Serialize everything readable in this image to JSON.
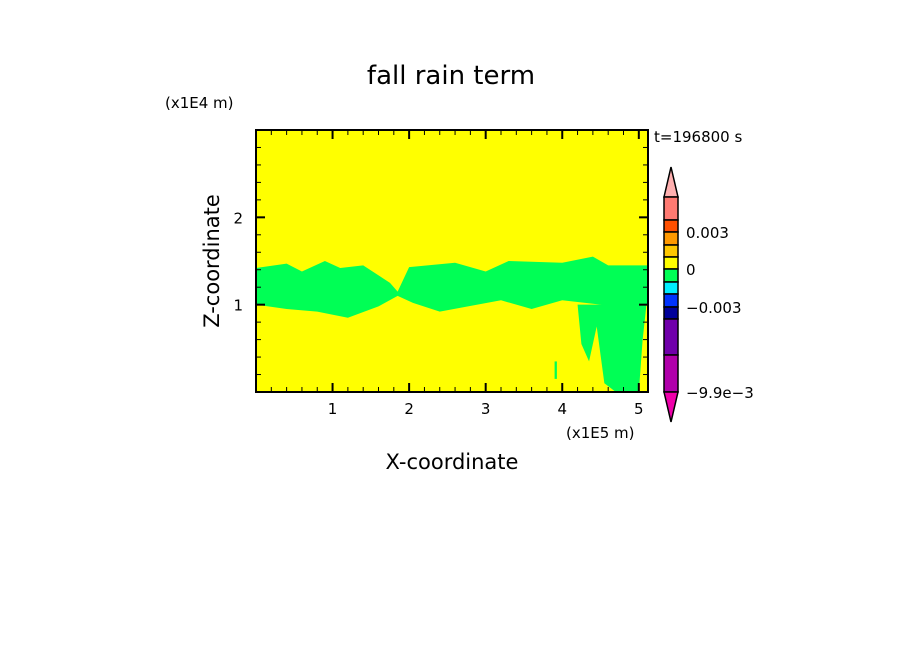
{
  "chart_data": {
    "type": "heatmap",
    "title": "fall rain term",
    "xlabel": "X-coordinate",
    "ylabel": "Z-coordinate",
    "x_unit": "(x1E5 m)",
    "y_unit": "(x1E4 m)",
    "time_label": "t=196800 s",
    "xlim": [
      0,
      5.12
    ],
    "ylim": [
      0,
      3
    ],
    "xticks": [
      1,
      2,
      3,
      4,
      5
    ],
    "yticks": [
      1,
      2
    ],
    "background_value_color": "#ffff00",
    "regions": [
      {
        "color": "#00ff55",
        "value_range": [
          -0.001,
          0
        ],
        "polygon": [
          [
            0,
            1.42
          ],
          [
            0.4,
            1.47
          ],
          [
            0.6,
            1.38
          ],
          [
            0.9,
            1.5
          ],
          [
            1.1,
            1.42
          ],
          [
            1.4,
            1.45
          ],
          [
            1.75,
            1.25
          ],
          [
            1.85,
            1.15
          ],
          [
            2.0,
            1.43
          ],
          [
            2.6,
            1.48
          ],
          [
            3.0,
            1.38
          ],
          [
            3.3,
            1.5
          ],
          [
            4.0,
            1.48
          ],
          [
            4.4,
            1.55
          ],
          [
            4.6,
            1.45
          ],
          [
            5.12,
            1.45
          ],
          [
            5.12,
            1.0
          ],
          [
            4.8,
            0.92
          ],
          [
            4.5,
            1.0
          ],
          [
            4.0,
            1.05
          ],
          [
            3.6,
            0.95
          ],
          [
            3.2,
            1.05
          ],
          [
            2.4,
            0.92
          ],
          [
            2.05,
            1.02
          ],
          [
            1.85,
            1.1
          ],
          [
            1.6,
            0.98
          ],
          [
            1.2,
            0.85
          ],
          [
            0.8,
            0.92
          ],
          [
            0.4,
            0.95
          ],
          [
            0,
            1.0
          ]
        ]
      },
      {
        "color": "#00ff55",
        "value_range": [
          -0.001,
          0
        ],
        "polygon": [
          [
            4.2,
            1.0
          ],
          [
            4.25,
            0.55
          ],
          [
            4.35,
            0.35
          ],
          [
            4.45,
            0.75
          ],
          [
            4.55,
            0.1
          ],
          [
            4.7,
            0.0
          ],
          [
            5.0,
            0.0
          ],
          [
            5.05,
            0.6
          ],
          [
            5.1,
            1.0
          ]
        ]
      },
      {
        "color": "#00ff55",
        "value_range": [
          -0.001,
          0
        ],
        "polygon": [
          [
            3.9,
            0.35
          ],
          [
            3.93,
            0.35
          ],
          [
            3.93,
            0.15
          ],
          [
            3.9,
            0.15
          ]
        ]
      }
    ],
    "colorbar": {
      "levels": [
        {
          "color": "#ffb0b0",
          "kind": "extend-top"
        },
        {
          "color": "#ff7a72"
        },
        {
          "color": "#ff5000"
        },
        {
          "color": "#ff9900"
        },
        {
          "color": "#ffc800"
        },
        {
          "color": "#ffff00"
        },
        {
          "color": "#00ff55"
        },
        {
          "color": "#00eeff"
        },
        {
          "color": "#0033ff"
        },
        {
          "color": "#000099"
        },
        {
          "color": "#7000aa"
        },
        {
          "color": "#b000aa"
        },
        {
          "color": "#ee00aa",
          "kind": "extend-bottom"
        }
      ],
      "labels": [
        "0.003",
        "0",
        "−0.003",
        "−9.9e−3"
      ],
      "label_values": [
        0.003,
        0,
        -0.003,
        -0.0099
      ]
    }
  }
}
